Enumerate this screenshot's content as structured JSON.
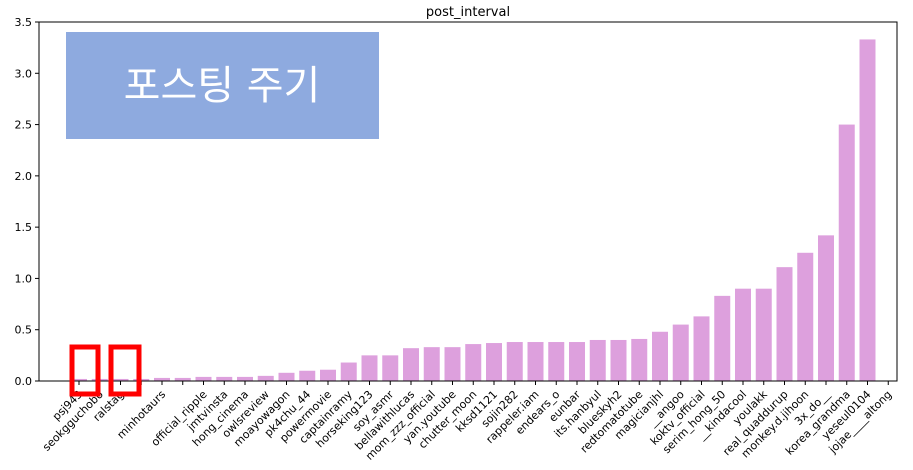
{
  "chart_data": {
    "type": "bar",
    "title": "post_interval",
    "xlabel": "",
    "ylabel": "",
    "ylim": [
      0,
      3.5
    ],
    "yticks": [
      0.0,
      0.5,
      1.0,
      1.5,
      2.0,
      2.5,
      3.0,
      3.5
    ],
    "ytick_labels": [
      "0.0",
      "0.5",
      "1.0",
      "1.5",
      "2.0",
      "2.5",
      "3.0",
      "3.5"
    ],
    "bar_color": "#dda0dd",
    "categories": [
      "psj943",
      "seokgguchobo",
      "ralstag",
      "",
      "minhotaurs",
      "",
      "official_ripple",
      "jmtvinsta",
      "hong_cinema",
      "owlsreview",
      "moayowagon",
      "pk4chu_44",
      "powermovie",
      "captainramy",
      "horseking123",
      "soy_asmr",
      "bellawithlucas",
      "mom_zzz_official",
      "yan.youtube",
      "chutter_moon",
      "kksd1121",
      "sojin282",
      "rappeler.iam",
      "endears_o",
      "eunbar",
      "its.hanbyul",
      "blueskyh2",
      "redtomatotube",
      "magicianjhl",
      "__angoo",
      "koktv_official",
      "serim_hong_50",
      "__kindacool",
      "youlakk",
      "real_quaddurup",
      "monkey.d.jihoon",
      "3x_do__",
      "korea_grandma",
      "yeseul0104",
      "jojae____altong"
    ],
    "values": [
      0.02,
      0.02,
      0.02,
      0.02,
      0.03,
      0.03,
      0.04,
      0.04,
      0.04,
      0.05,
      0.08,
      0.1,
      0.11,
      0.18,
      0.25,
      0.25,
      0.32,
      0.33,
      0.33,
      0.36,
      0.37,
      0.38,
      0.38,
      0.38,
      0.38,
      0.4,
      0.4,
      0.41,
      0.48,
      0.55,
      0.63,
      0.83,
      0.9,
      0.9,
      1.11,
      1.25,
      1.42,
      2.5,
      3.33,
      0.0
    ],
    "annotation": {
      "text": "포스팅 주기",
      "color": "#8eaadf",
      "text_color": "#ffffff"
    },
    "highlight_color": "#ff0000"
  }
}
